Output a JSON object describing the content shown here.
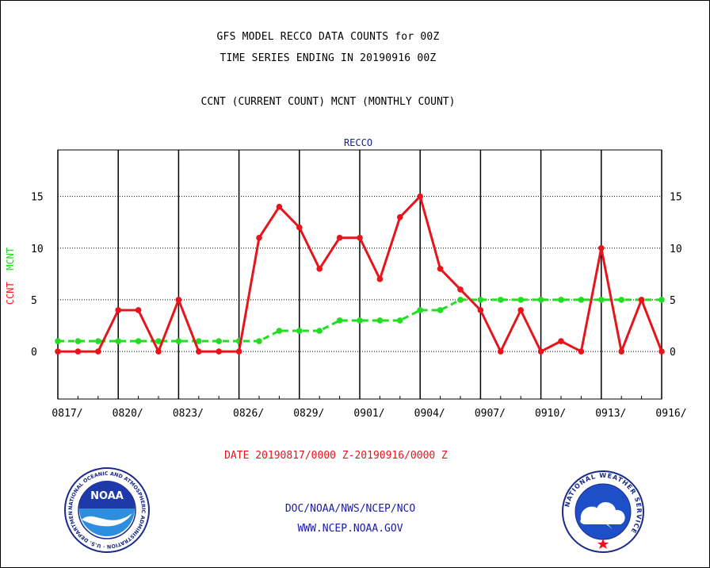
{
  "header": {
    "title_line1": "GFS MODEL RECCO DATA COUNTS for 00Z",
    "title_line2": "TIME SERIES ENDING IN 20190916 00Z",
    "subtitle": "CCNT (CURRENT COUNT) MCNT (MONTHLY COUNT)"
  },
  "chart_data": {
    "type": "line",
    "title": "RECCO",
    "ylabel_parts": [
      "CCNT",
      "MCNT"
    ],
    "xlabel": "DATE 20190817/0000 Z-20190916/0000 Z",
    "x_tick_labels": [
      "0817/",
      "0820/",
      "0823/",
      "0826/",
      "0829/",
      "0901/",
      "0904/",
      "0907/",
      "0910/",
      "0913/",
      "0916/"
    ],
    "y_ticks": [
      0,
      5,
      10,
      15
    ],
    "ylim": [
      -4.6,
      19.5
    ],
    "xlim": [
      0,
      30
    ],
    "grid": true,
    "series": [
      {
        "name": "CCNT",
        "color": "#e8141c",
        "values": [
          0,
          0,
          0,
          4,
          4,
          0,
          5,
          0,
          0,
          0,
          11,
          14,
          12,
          8,
          11,
          11,
          7,
          13,
          15,
          8,
          6,
          4,
          0,
          4,
          0,
          1,
          0,
          10,
          0,
          5,
          0
        ]
      },
      {
        "name": "MCNT",
        "color": "#22dd22",
        "values": [
          1,
          1,
          1,
          1,
          1,
          1,
          1,
          1,
          1,
          1,
          1,
          2,
          2,
          2,
          3,
          3,
          3,
          3,
          4,
          4,
          5,
          5,
          5,
          5,
          5,
          5,
          5,
          5,
          5,
          5,
          5
        ]
      }
    ]
  },
  "footer": {
    "line1": "DOC/NOAA/NWS/NCEP/NCO",
    "line2": "WWW.NCEP.NOAA.GOV"
  },
  "logos": {
    "noaa_text": "NOAA",
    "noaa_ring_text": "NATIONAL OCEANIC AND ATMOSPHERIC ADMINISTRATION · U.S. DEPARTMENT OF COMMERCE",
    "nws_ring_text": "NATIONAL WEATHER SERVICE"
  }
}
